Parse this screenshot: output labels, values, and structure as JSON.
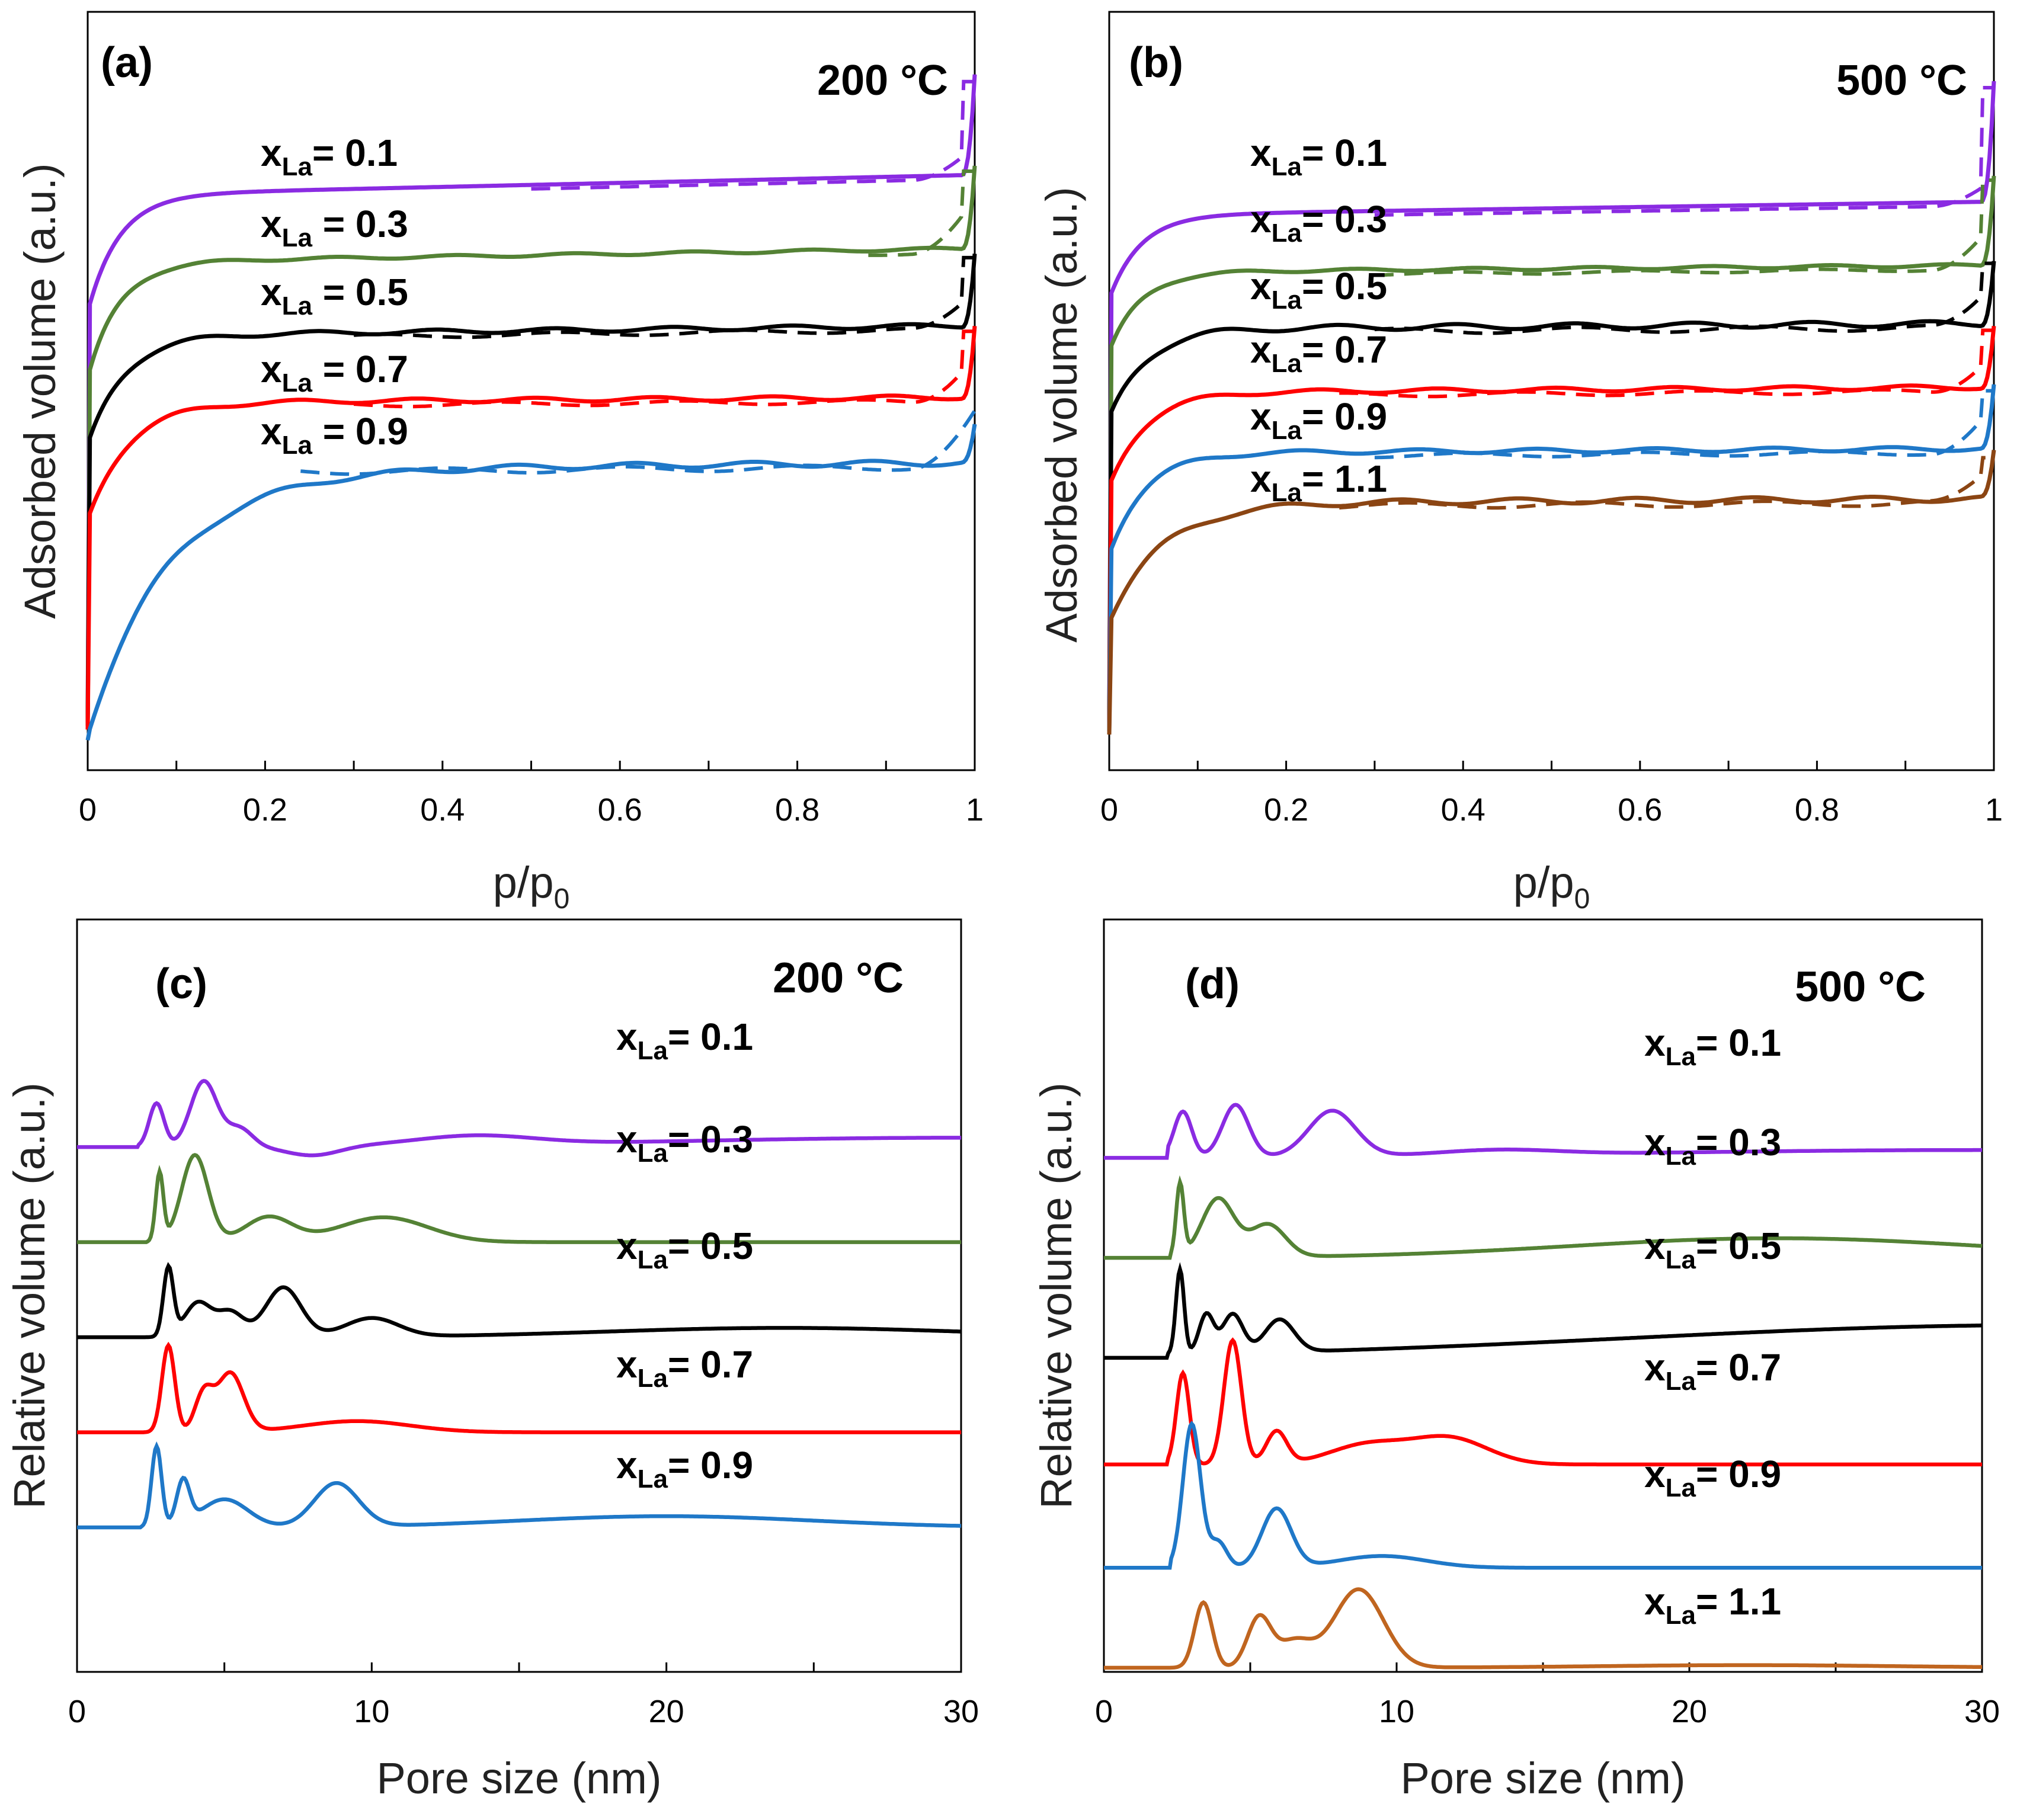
{
  "colors": {
    "x0.1": "#8a2be2",
    "x0.3": "#548235",
    "x0.5": "#000000",
    "x0.7": "#ff0000",
    "x0.9": "#1f78c8",
    "x1.1a": "#8b4513",
    "x1.1b": "#c0651f",
    "axis": "#000000"
  },
  "labels": {
    "xla_main": "x",
    "xla_sub": "La",
    "pp_main": "p/p",
    "pp_sub": "0"
  },
  "chart_data": [
    {
      "id": "a",
      "type": "line",
      "panel": "(a)",
      "temp": "200 °C",
      "xlabel": "p/p0",
      "ylabel": "Adsorbed volume (a.u.)",
      "xlim": [
        0,
        1
      ],
      "ylim": [
        0,
        1
      ],
      "xticks": [
        "0",
        "0.2",
        "0.4",
        "0.6",
        "0.8",
        "1"
      ],
      "style": "isotherm",
      "series": [
        {
          "name": "xLa= 0.1",
          "eq": "= 0.1",
          "color": "x0.1",
          "base": 0.64,
          "rise": 0.08,
          "plateau": 0.815,
          "slope": 0.03,
          "end": 0.995,
          "dashRise": 0.05,
          "k": 0.035,
          "dashFrom": 0.5,
          "wiggle": 0
        },
        {
          "name": "xLa = 0.3",
          "eq": " = 0.3",
          "color": "x0.3",
          "base": 0.54,
          "rise": 0.07,
          "plateau": 0.715,
          "slope": 0.02,
          "end": 0.86,
          "dashRise": 0.08,
          "k": 0.035,
          "dashFrom": 0.88,
          "wiggle": 0.002
        },
        {
          "name": "xLa = 0.5",
          "eq": " = 0.5",
          "color": "x0.5",
          "base": 0.44,
          "rise": 0.06,
          "plateau": 0.605,
          "slope": 0.015,
          "end": 0.73,
          "dashRise": 0.06,
          "k": 0.04,
          "dashFrom": 0.3,
          "wiggle": 0.003
        },
        {
          "name": "xLa = 0.7",
          "eq": " = 0.7",
          "color": "x0.7",
          "base": 0.33,
          "rise": 0.05,
          "plateau": 0.505,
          "slope": 0.008,
          "end": 0.62,
          "dashRise": 0.07,
          "k": 0.045,
          "dashFrom": 0.3,
          "wiggle": 0.003
        },
        {
          "name": "xLa = 0.9",
          "eq": " = 0.9",
          "color": "x0.9",
          "base": 0.01,
          "rise": 0.18,
          "plateau": 0.405,
          "slope": 0.01,
          "end": 0.47,
          "dashRise": 0.08,
          "k": 0.09,
          "dashFrom": 0.24,
          "wiggle": 0.004
        }
      ]
    },
    {
      "id": "b",
      "type": "line",
      "panel": "(b)",
      "temp": "500 °C",
      "xlabel": "p/p0",
      "ylabel": "Adsorbed volume (a.u.)",
      "xlim": [
        0,
        1
      ],
      "ylim": [
        0,
        1
      ],
      "xticks": [
        "0",
        "0.2",
        "0.4",
        "0.6",
        "0.8",
        "1"
      ],
      "style": "isotherm",
      "series": [
        {
          "name": "xLa= 0.1",
          "eq": "= 0.1",
          "color": "x0.1",
          "base": 0.66,
          "rise": 0.08,
          "plateau": 0.785,
          "slope": 0.02,
          "end": 0.985,
          "dashRise": 0.04,
          "k": 0.035,
          "dashFrom": 0.3,
          "wiggle": 0
        },
        {
          "name": "xLa= 0.3",
          "eq": "= 0.3",
          "color": "x0.3",
          "base": 0.58,
          "rise": 0.06,
          "plateau": 0.7,
          "slope": 0.01,
          "end": 0.845,
          "dashRise": 0.07,
          "k": 0.035,
          "dashFrom": 0.3,
          "wiggle": 0.002
        },
        {
          "name": "xLa= 0.5",
          "eq": "= 0.5",
          "color": "x0.5",
          "base": 0.48,
          "rise": 0.06,
          "plateau": 0.615,
          "slope": 0.008,
          "end": 0.72,
          "dashRise": 0.07,
          "k": 0.04,
          "dashFrom": 0.3,
          "wiggle": 0.004
        },
        {
          "name": "xLa= 0.7",
          "eq": "= 0.7",
          "color": "x0.7",
          "base": 0.38,
          "rise": 0.06,
          "plateau": 0.52,
          "slope": 0.008,
          "end": 0.62,
          "dashRise": 0.06,
          "k": 0.04,
          "dashFrom": 0.26,
          "wiggle": 0.003
        },
        {
          "name": "xLa= 0.9",
          "eq": "= 0.9",
          "color": "x0.9",
          "base": 0.28,
          "rise": 0.05,
          "plateau": 0.43,
          "slope": 0.006,
          "end": 0.53,
          "dashRise": 0.07,
          "k": 0.04,
          "dashFrom": 0.3,
          "wiggle": 0.003
        },
        {
          "name": "xLa= 1.1",
          "eq": "= 1.1",
          "color": "x1.1a",
          "base": 0.18,
          "rise": 0.08,
          "plateau": 0.355,
          "slope": 0.006,
          "end": 0.43,
          "dashRise": 0.06,
          "k": 0.06,
          "dashFrom": 0.26,
          "wiggle": 0.004
        }
      ]
    },
    {
      "id": "c",
      "type": "line",
      "panel": "(c)",
      "temp": "200 °C",
      "xlabel": "Pore size (nm)",
      "ylabel": "Relative volume (a.u.)",
      "xlim": [
        0,
        30
      ],
      "ylim": [
        0,
        1
      ],
      "xticks": [
        "0",
        "10",
        "20",
        "30"
      ],
      "style": "psd",
      "series": [
        {
          "name": "xLa= 0.1",
          "eq": "= 0.1",
          "color": "x0.1",
          "base": 0.77,
          "start": 2.1,
          "tail": 0.015,
          "tailMu": 30,
          "tailW": 10,
          "peaks": [
            [
              2.7,
              0.07,
              0.25
            ],
            [
              4.3,
              0.105,
              0.45
            ],
            [
              5.5,
              0.03,
              0.45
            ],
            [
              13.5,
              0.015,
              2.0
            ]
          ],
          "dips": [
            [
              8.0,
              0.015,
              0.9
            ]
          ]
        },
        {
          "name": "xLa= 0.3",
          "eq": "= 0.3",
          "color": "x0.3",
          "base": 0.62,
          "start": 2.4,
          "tail": 0.0,
          "tailMu": 30,
          "tailW": 10,
          "peaks": [
            [
              2.8,
              0.11,
              0.13
            ],
            [
              4.0,
              0.14,
              0.45
            ],
            [
              6.5,
              0.04,
              0.8
            ],
            [
              10.4,
              0.04,
              1.5
            ]
          ],
          "dips": []
        },
        {
          "name": "xLa= 0.5",
          "eq": "= 0.5",
          "color": "x0.5",
          "base": 0.47,
          "start": 2.3,
          "tail": 0.015,
          "tailMu": 24,
          "tailW": 6,
          "peaks": [
            [
              3.1,
              0.11,
              0.17
            ],
            [
              4.1,
              0.055,
              0.45
            ],
            [
              5.2,
              0.04,
              0.45
            ],
            [
              7.0,
              0.08,
              0.6
            ],
            [
              10.0,
              0.03,
              0.9
            ]
          ],
          "dips": []
        },
        {
          "name": "xLa= 0.7",
          "eq": "= 0.7",
          "color": "x0.7",
          "base": 0.32,
          "start": 2.3,
          "tail": 0.0,
          "tailMu": 30,
          "tailW": 10,
          "peaks": [
            [
              3.1,
              0.14,
              0.22
            ],
            [
              4.3,
              0.06,
              0.3
            ],
            [
              5.2,
              0.095,
              0.45
            ],
            [
              9.5,
              0.018,
              1.8
            ]
          ],
          "dips": []
        },
        {
          "name": "xLa= 0.9",
          "eq": "= 0.9",
          "color": "x0.9",
          "base": 0.17,
          "start": 2.2,
          "tail": 0.018,
          "tailMu": 20,
          "tailW": 5,
          "peaks": [
            [
              2.7,
              0.13,
              0.17
            ],
            [
              3.6,
              0.07,
              0.22
            ],
            [
              5.0,
              0.045,
              0.8
            ],
            [
              8.8,
              0.07,
              0.75
            ]
          ],
          "dips": []
        }
      ]
    },
    {
      "id": "d",
      "type": "line",
      "panel": "(d)",
      "temp": "500 °C",
      "xlabel": "Pore size (nm)",
      "ylabel": "Relative volume (a.u.)",
      "xlim": [
        0,
        30
      ],
      "ylim": [
        0,
        1
      ],
      "xticks": [
        "0",
        "10",
        "20",
        "30"
      ],
      "style": "psd",
      "series": [
        {
          "name": "xLa= 0.1",
          "eq": "= 0.1",
          "color": "x0.1",
          "base": 0.765,
          "start": 2.2,
          "tail": 0.012,
          "tailMu": 30,
          "tailW": 12,
          "peaks": [
            [
              2.7,
              0.07,
              0.3
            ],
            [
              4.5,
              0.08,
              0.45
            ],
            [
              7.8,
              0.07,
              0.8
            ],
            [
              13.5,
              0.008,
              2.0
            ]
          ],
          "dips": []
        },
        {
          "name": "xLa= 0.3",
          "eq": "= 0.3",
          "color": "x0.3",
          "base": 0.615,
          "start": 2.3,
          "tail": 0.03,
          "tailMu": 23,
          "tailW": 7,
          "peaks": [
            [
              2.6,
              0.11,
              0.13
            ],
            [
              3.9,
              0.09,
              0.55
            ],
            [
              5.6,
              0.05,
              0.6
            ]
          ],
          "dips": []
        },
        {
          "name": "xLa= 0.5",
          "eq": "= 0.5",
          "color": "x0.5",
          "base": 0.465,
          "start": 2.2,
          "tail": 0.05,
          "tailMu": 32,
          "tailW": 14,
          "peaks": [
            [
              2.6,
              0.13,
              0.14
            ],
            [
              3.5,
              0.06,
              0.25
            ],
            [
              4.4,
              0.06,
              0.35
            ],
            [
              6.0,
              0.05,
              0.5
            ]
          ],
          "dips": []
        },
        {
          "name": "xLa= 0.7",
          "eq": "= 0.7",
          "color": "x0.7",
          "base": 0.305,
          "start": 2.2,
          "tail": 0.0,
          "tailMu": 30,
          "tailW": 10,
          "peaks": [
            [
              2.7,
              0.14,
              0.22
            ],
            [
              4.4,
              0.19,
              0.3
            ],
            [
              5.9,
              0.05,
              0.35
            ],
            [
              9.0,
              0.03,
              1.3
            ],
            [
              11.8,
              0.04,
              1.3
            ]
          ],
          "dips": []
        },
        {
          "name": "xLa= 0.9",
          "eq": "= 0.9",
          "color": "x0.9",
          "base": 0.15,
          "start": 2.3,
          "tail": 0.0,
          "tailMu": 30,
          "tailW": 10,
          "peaks": [
            [
              3.0,
              0.22,
              0.3
            ],
            [
              3.9,
              0.04,
              0.3
            ],
            [
              5.9,
              0.09,
              0.5
            ],
            [
              9.5,
              0.018,
              1.5
            ]
          ],
          "dips": []
        },
        {
          "name": "xLa= 1.1",
          "eq": "= 1.1",
          "color": "x1.1b",
          "base": 0.0,
          "start": 2.3,
          "tail": 0.004,
          "tailMu": 22,
          "tailW": 5,
          "peaks": [
            [
              3.4,
              0.1,
              0.3
            ],
            [
              5.3,
              0.075,
              0.4
            ],
            [
              6.5,
              0.04,
              0.6
            ],
            [
              8.7,
              0.12,
              0.85
            ]
          ],
          "dips": []
        }
      ]
    }
  ]
}
